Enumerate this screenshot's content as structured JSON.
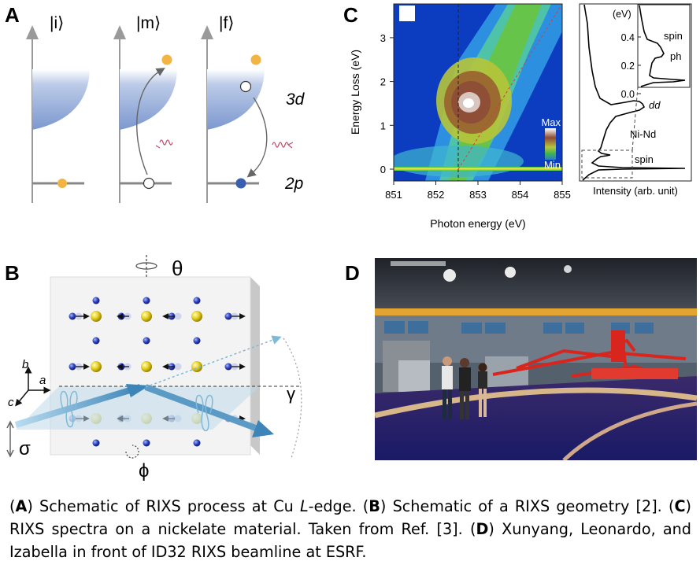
{
  "panels": {
    "a": {
      "letter": "A",
      "states": [
        "|i⟩",
        "|m⟩",
        "|f⟩"
      ],
      "label_3d": "3d",
      "label_2p": "2p"
    },
    "b": {
      "letter": "B",
      "theta": "θ",
      "phi": "ϕ",
      "gamma": "γ",
      "sigma": "σ",
      "axis_a": "a",
      "axis_b": "b",
      "axis_c": "c"
    },
    "c": {
      "letter": "C",
      "xlabel": "Photon energy (eV)",
      "ylabel": "Energy Loss (eV)",
      "xticks": [
        "851",
        "852",
        "853",
        "854",
        "855"
      ],
      "yticks": [
        "0",
        "1",
        "2",
        "3"
      ],
      "colorbar_max": "Max",
      "colorbar_min": "Min",
      "side_xlabel": "Intensity (arb. unit)",
      "side_labels": [
        "dd",
        "Ni-Nd",
        "spin"
      ],
      "inset_unit": "(eV)",
      "inset_ticks": [
        "0.4",
        "0.2",
        "0.0"
      ],
      "inset_labels": [
        "spin",
        "ph"
      ]
    },
    "d": {
      "letter": "D"
    }
  },
  "caption": {
    "parts": [
      {
        "bold": "A",
        "text": ") Schematic of RIXS process at Cu "
      },
      {
        "italic": "L"
      },
      {
        "text": "-edge. ("
      },
      {
        "bold": "B",
        "text": ") Schematic of a RIXS geometry [2]. ("
      },
      {
        "bold": "C",
        "text": ") RIXS spectra on a nickelate material. Taken from Ref. [3]. ("
      },
      {
        "bold": "D",
        "text": ") Xunyang, Leonardo, and Izabella in front of ID32 RIXS beamline at ESRF."
      }
    ]
  },
  "colors": {
    "blue_band": "#7c98cf",
    "orange_dot": "#f2b544",
    "dark_blue_dot": "#3a5fb0",
    "red_wave": "#c04a6a"
  }
}
